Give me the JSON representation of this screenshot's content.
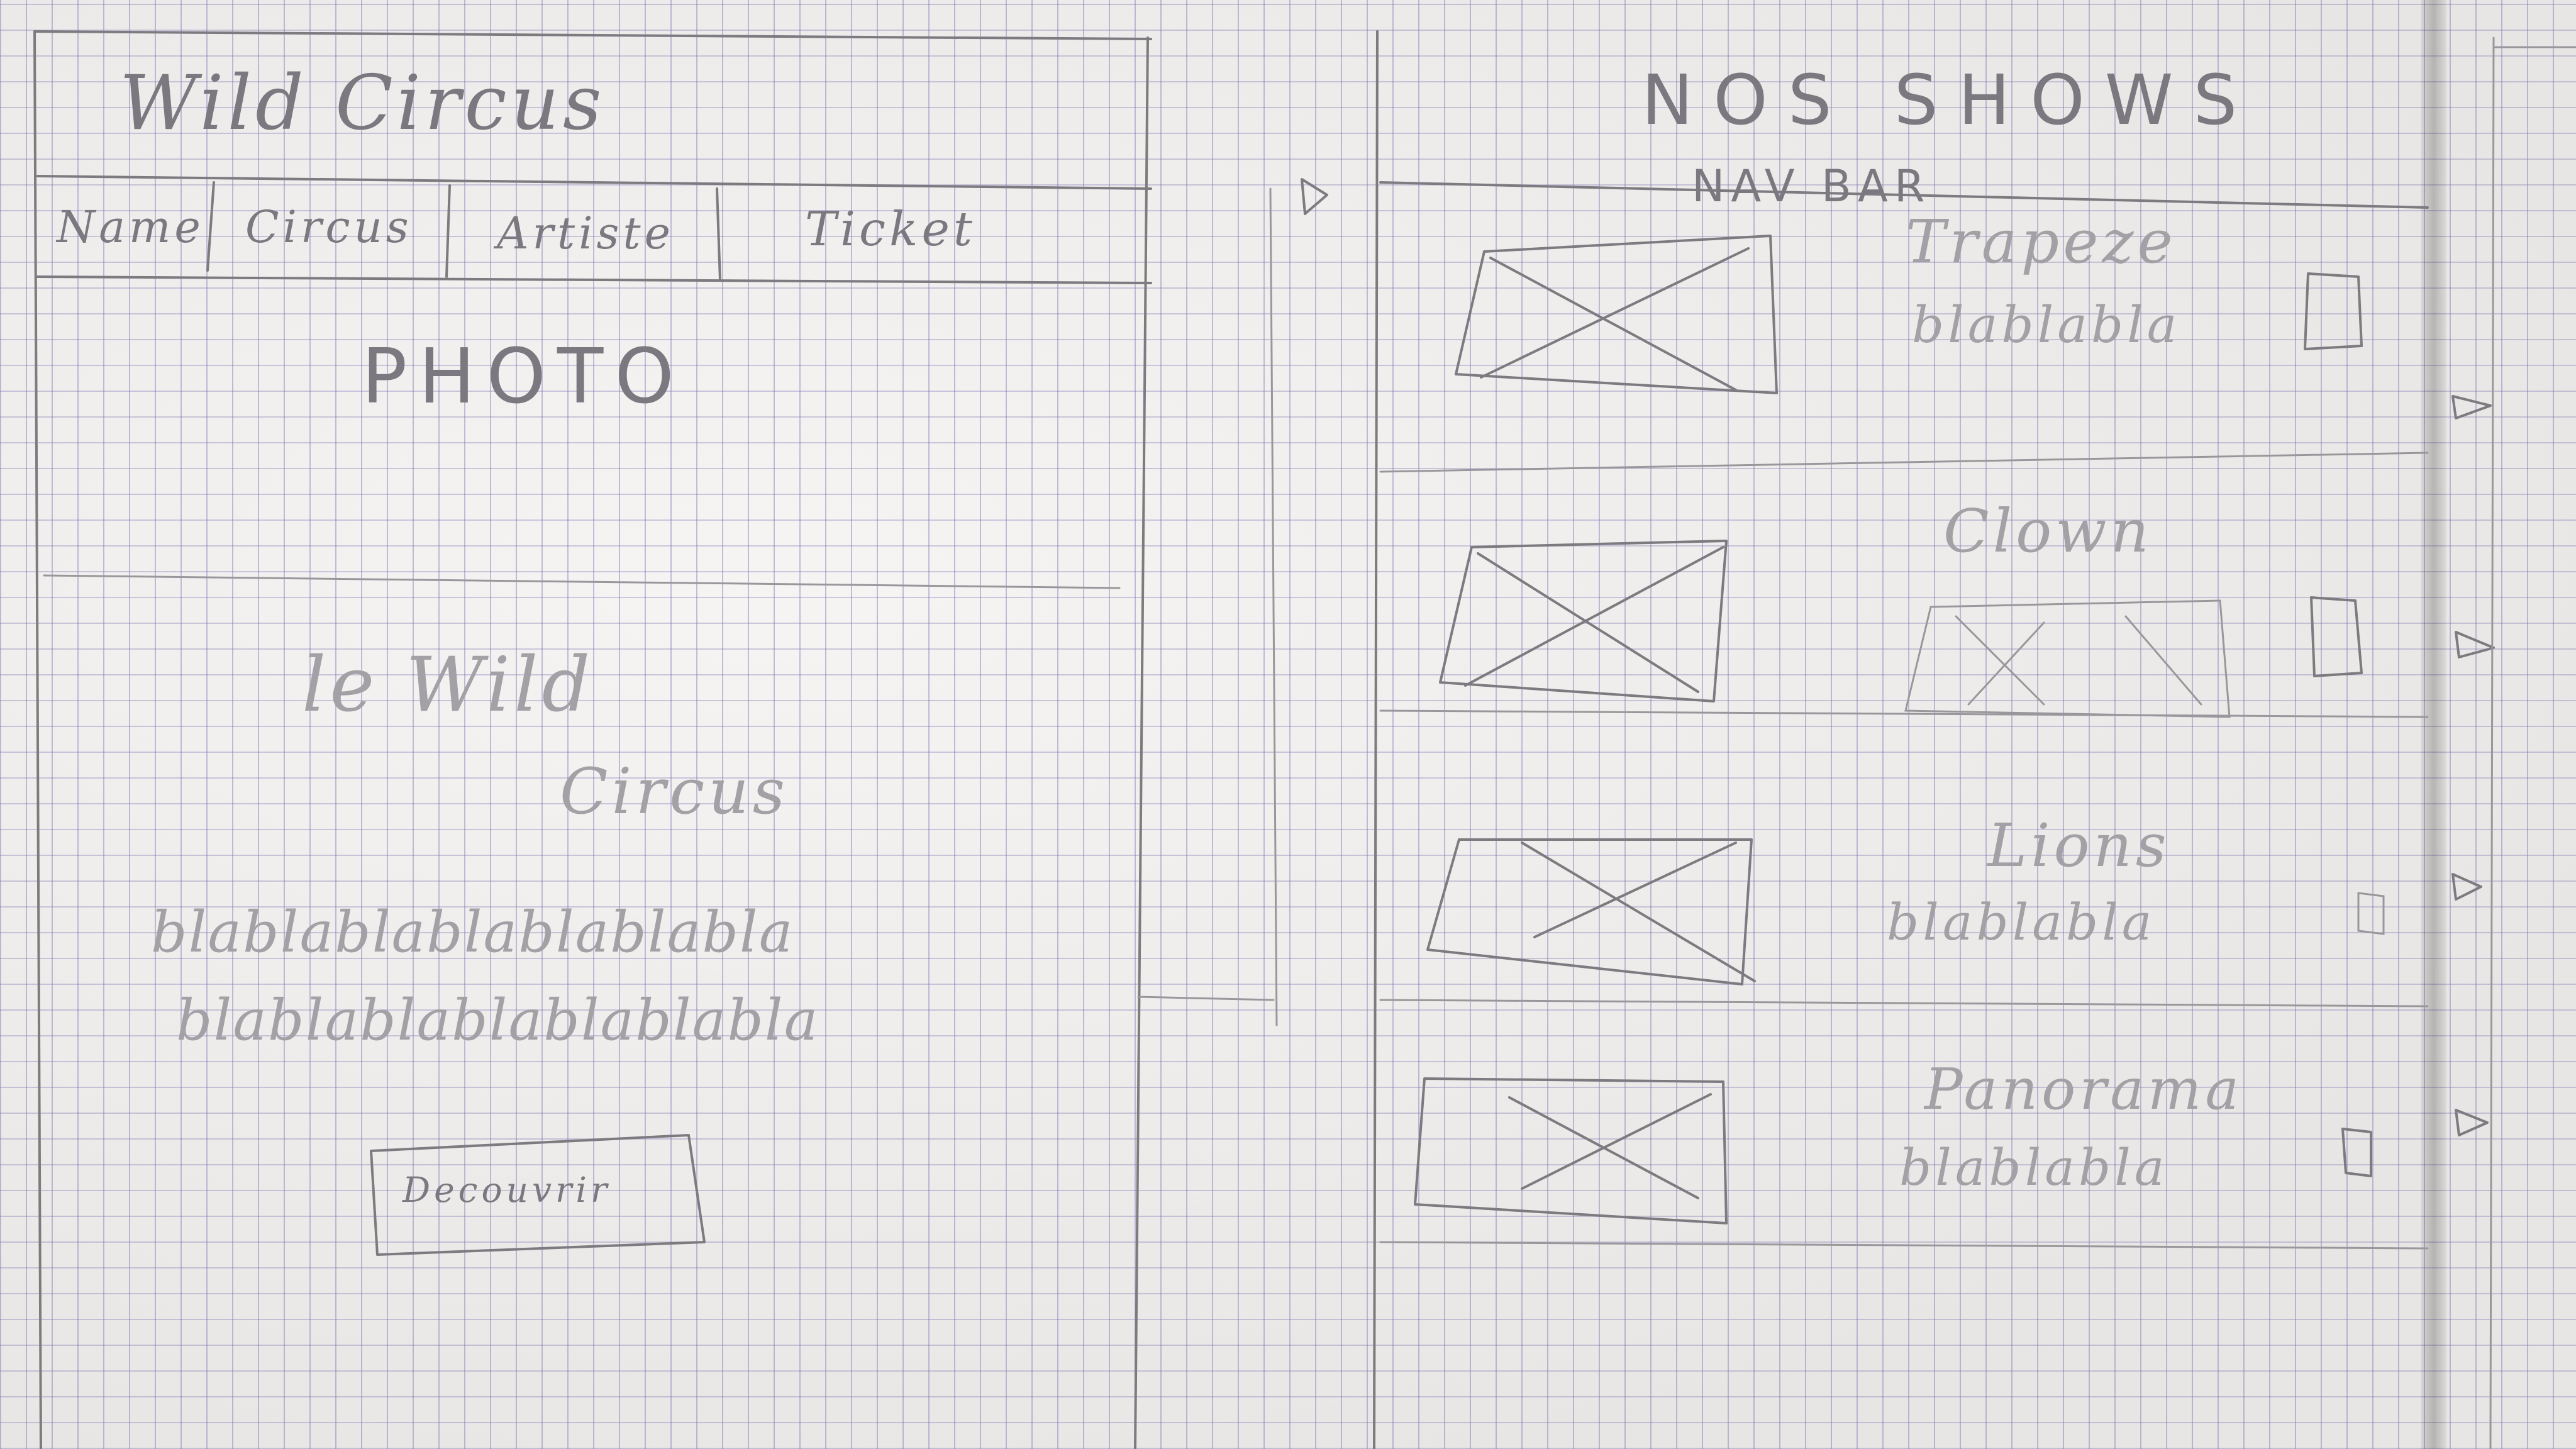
{
  "left_page": {
    "site_title": "Wild Circus",
    "nav_items": [
      "Name",
      "Circus",
      "Artiste",
      "Ticket"
    ],
    "hero_label": "PHOTO",
    "intro_title_line1": "le Wild",
    "intro_title_line2": "Circus",
    "intro_text_line1": "blablablablablablabla",
    "intro_text_line2": "blablablablablablabla",
    "button_label": "Decouvrir"
  },
  "right_page": {
    "heading": "NOS SHOWS",
    "nav_bar_label": "NAV BAR",
    "shows": [
      {
        "title": "Trapeze",
        "text": "blablabla"
      },
      {
        "title": "Clown",
        "text": ""
      },
      {
        "title": "Lions",
        "text": "blablabla"
      },
      {
        "title": "Panorama",
        "text": "blablabla"
      }
    ]
  }
}
